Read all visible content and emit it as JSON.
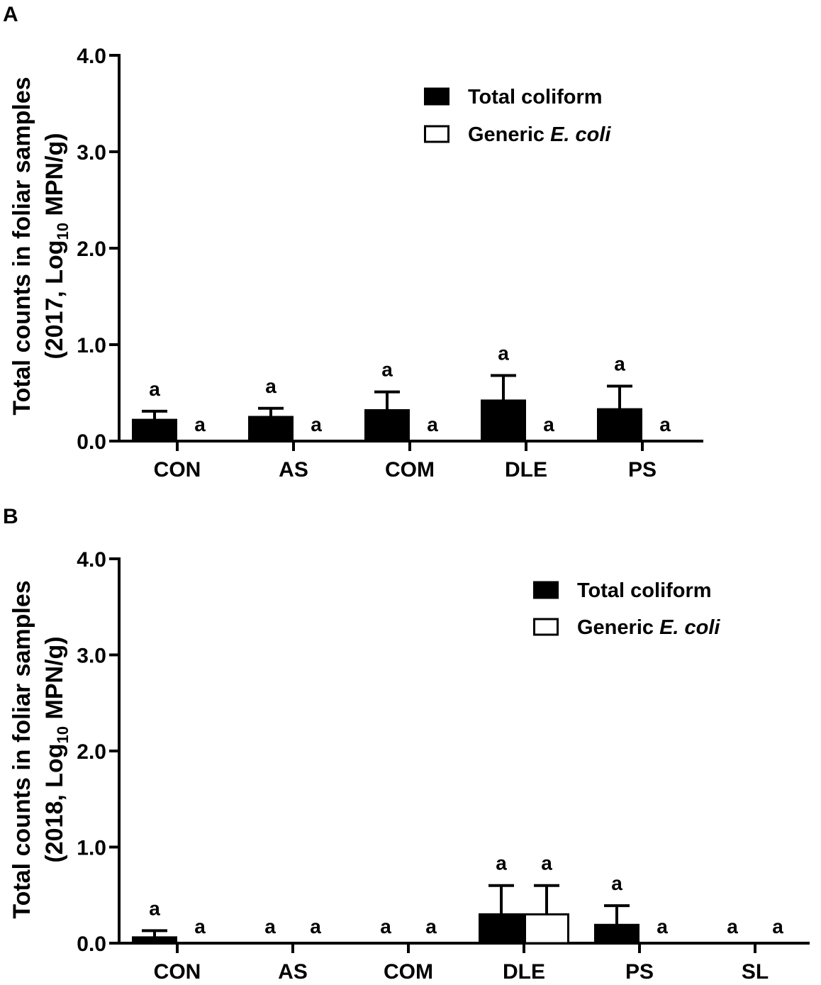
{
  "chart_data": [
    {
      "panel": "A",
      "type": "bar",
      "ylabel_line1": "Total counts in foliar samples",
      "ylabel_line2_prefix": "(2017, Log",
      "ylabel_line2_sub": "10",
      "ylabel_line2_suffix": " MPN/g)",
      "ylim": [
        0,
        4
      ],
      "yticks": [
        "0.0",
        "1.0",
        "2.0",
        "3.0",
        "4.0"
      ],
      "categories": [
        "CON",
        "AS",
        "COM",
        "DLE",
        "PS"
      ],
      "series": [
        {
          "name": "Total coliform",
          "fill": "#000000",
          "values": [
            0.22,
            0.25,
            0.32,
            0.42,
            0.33
          ],
          "errors": [
            0.09,
            0.09,
            0.19,
            0.26,
            0.24
          ],
          "sig": [
            "a",
            "a",
            "a",
            "a",
            "a"
          ]
        },
        {
          "name": "Generic E. coli",
          "fill": "#ffffff",
          "values": [
            0,
            0,
            0,
            0,
            0
          ],
          "errors": [
            0,
            0,
            0,
            0,
            0
          ],
          "sig": [
            "a",
            "a",
            "a",
            "a",
            "a"
          ]
        }
      ],
      "legend": {
        "items": [
          {
            "prefix": "Total coliform",
            "italic": ""
          },
          {
            "prefix": "Generic ",
            "italic": "E. coli"
          }
        ],
        "placement": "top-right"
      }
    },
    {
      "panel": "B",
      "type": "bar",
      "ylabel_line1": "Total counts in foliar samples",
      "ylabel_line2_prefix": "(2018, Log",
      "ylabel_line2_sub": "10",
      "ylabel_line2_suffix": " MPN/g)",
      "ylim": [
        0,
        4
      ],
      "yticks": [
        "0.0",
        "1.0",
        "2.0",
        "3.0",
        "4.0"
      ],
      "categories": [
        "CON",
        "AS",
        "COM",
        "DLE",
        "PS",
        "SL"
      ],
      "series": [
        {
          "name": "Total coliform",
          "fill": "#000000",
          "values": [
            0.06,
            0,
            0,
            0.3,
            0.19,
            0
          ],
          "errors": [
            0.07,
            0,
            0,
            0.3,
            0.2,
            0
          ],
          "sig": [
            "a",
            "a",
            "a",
            "a",
            "a",
            "a"
          ]
        },
        {
          "name": "Generic E. coli",
          "fill": "#ffffff",
          "values": [
            0,
            0,
            0,
            0.3,
            0,
            0
          ],
          "errors": [
            0,
            0,
            0,
            0.3,
            0,
            0
          ],
          "sig": [
            "a",
            "a",
            "a",
            "a",
            "a",
            "a"
          ]
        }
      ],
      "legend": {
        "items": [
          {
            "prefix": "Total coliform",
            "italic": ""
          },
          {
            "prefix": "Generic ",
            "italic": "E. coli"
          }
        ],
        "placement": "top-right"
      }
    }
  ]
}
